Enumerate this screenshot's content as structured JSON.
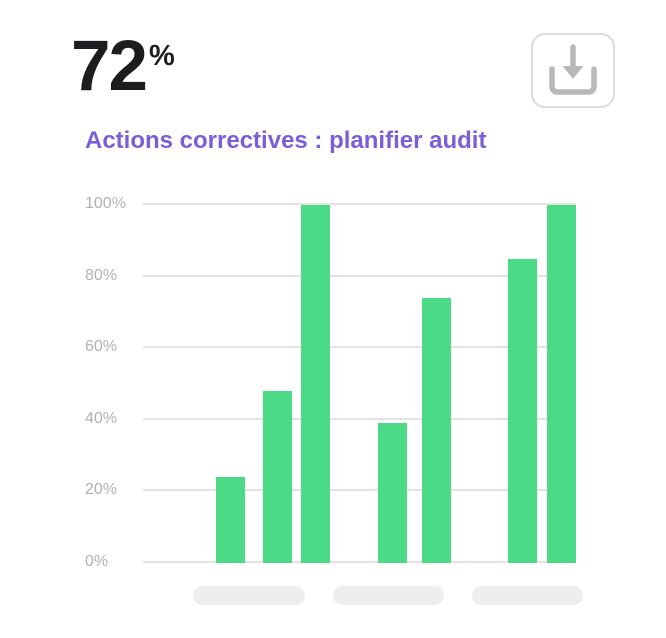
{
  "stat": {
    "value": "72",
    "unit": "%"
  },
  "header": {
    "download_icon": "download-icon"
  },
  "chart_data": {
    "type": "bar",
    "title": "Actions correctives : planifier audit",
    "values": [
      24,
      48,
      100,
      39,
      74,
      85,
      100
    ],
    "groups": [
      {
        "bars": [
          24,
          48,
          100
        ]
      },
      {
        "bars": [
          39,
          74
        ]
      },
      {
        "bars": [
          85,
          100
        ]
      }
    ],
    "categories": [
      "",
      "",
      ""
    ],
    "category_labels_are_placeholders": true,
    "yticks": [
      100,
      80,
      60,
      40,
      20,
      0
    ],
    "ytick_labels": [
      "100%",
      "80%",
      "60%",
      "40%",
      "20%",
      "0%"
    ],
    "ylim": [
      0,
      100
    ],
    "xlabel": "",
    "ylabel": "",
    "grid": true,
    "legend_position": "none",
    "bar_color": "#4bdb86"
  },
  "colors": {
    "accent_green": "#4bdb86",
    "title_purple": "#7a5fd8",
    "stat_dark": "#1d1d1f",
    "grid_gray": "#e3e3e3",
    "tick_gray": "#b1b1b1",
    "pill_gray": "#eeeeee",
    "icon_gray": "#b9b9b9",
    "button_border": "#dcdcdc"
  }
}
